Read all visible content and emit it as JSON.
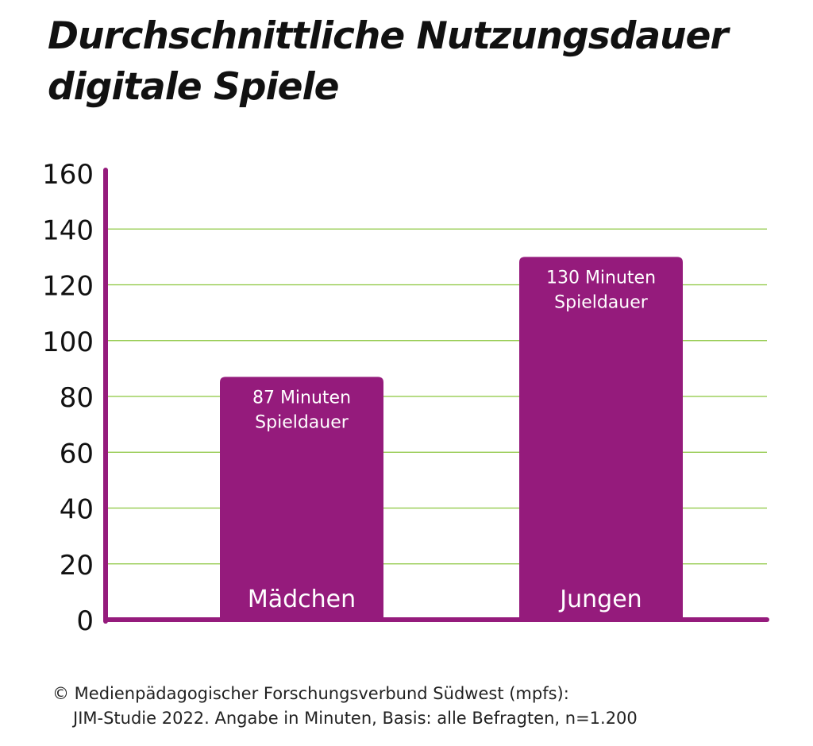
{
  "title_lines": [
    "Durchschnittliche Nutzungsdauer",
    "digitale Spiele"
  ],
  "source_lines": [
    "© Medienpädagogischer Forschungsverbund Südwest (mpfs):",
    "JIM-Studie 2022. Angabe in Minuten, Basis: alle Befragten, n=1.200"
  ],
  "colors": {
    "bar": "#951b7c",
    "axis": "#951b7c",
    "grid": "#8cc63f",
    "text": "#111111",
    "bar_label": "#ffffff"
  },
  "chart_data": {
    "type": "bar",
    "title": "Durchschnittliche Nutzungsdauer digitale Spiele",
    "xlabel": "",
    "ylabel": "",
    "categories": [
      "Mädchen",
      "Jungen"
    ],
    "values": [
      87,
      130
    ],
    "data_labels": [
      [
        "87 Minuten",
        "Spieldauer"
      ],
      [
        "130 Minuten",
        "Spieldauer"
      ]
    ],
    "ylim": [
      0,
      160
    ],
    "yticks": [
      "0",
      "20",
      "40",
      "60",
      "80",
      "100",
      "120",
      "140",
      "160"
    ],
    "grid": true,
    "legend": "none"
  }
}
